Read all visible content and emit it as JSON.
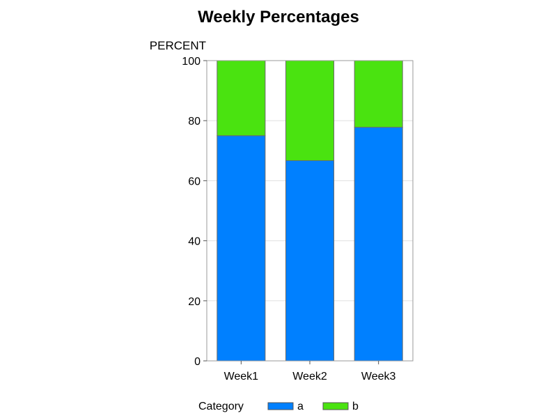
{
  "chart_data": {
    "type": "bar",
    "stacked": true,
    "title": "Weekly Percentages",
    "ylabel": "PERCENT",
    "xlabel": "",
    "categories": [
      "Week1",
      "Week2",
      "Week3"
    ],
    "series": [
      {
        "name": "a",
        "values": [
          75.0,
          66.7,
          77.8
        ],
        "color": "#0080ff"
      },
      {
        "name": "b",
        "values": [
          25.0,
          33.3,
          22.2
        ],
        "color": "#4ae310"
      }
    ],
    "ylim": [
      0,
      100
    ],
    "yticks": [
      "0",
      "20",
      "40",
      "60",
      "80",
      "100"
    ],
    "grid": true,
    "legend": {
      "title": "Category",
      "position": "bottom"
    }
  }
}
